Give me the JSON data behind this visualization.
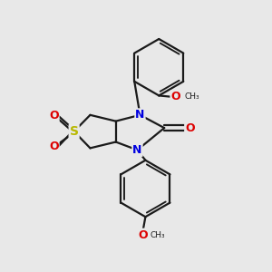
{
  "bg_color": "#e8e8e8",
  "atom_colors": {
    "C": "#1a1a1a",
    "N": "#0000e0",
    "O": "#dd0000",
    "S": "#b8b800"
  },
  "bond_color": "#1a1a1a",
  "bond_width": 1.6,
  "figsize": [
    3.0,
    3.0
  ],
  "dpi": 100
}
